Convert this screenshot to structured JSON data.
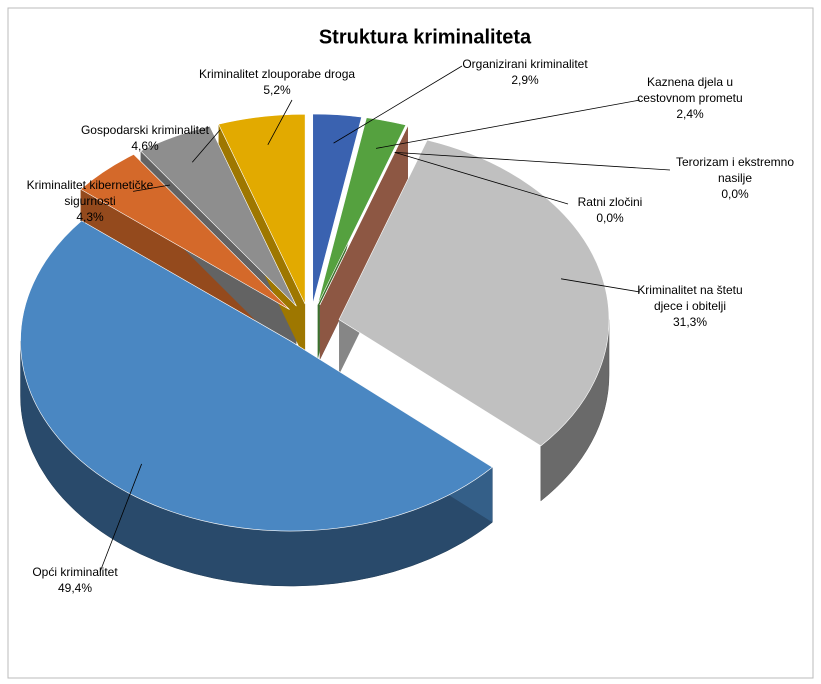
{
  "chart_data": {
    "type": "pie",
    "title": "Struktura kriminaliteta",
    "categories": [
      "Organizirani kriminalitet",
      "Kaznena djela u cestovnom prometu",
      "Terorizam i ekstremno nasilje",
      "Ratni zločini",
      "Kriminalitet na štetu djece i obitelji",
      "Opći kriminalitet",
      "Kriminalitet kibernetičke sigurnosti",
      "Gospodarski kriminalitet",
      "Kriminalitet zlouporabe droga"
    ],
    "values": [
      2.9,
      2.4,
      0.0,
      0.0,
      31.3,
      49.4,
      4.3,
      4.6,
      5.2
    ],
    "value_labels": [
      "2,9%",
      "2,4%",
      "0,0%",
      "0,0%",
      "31,3%",
      "49,4%",
      "4,3%",
      "4,6%",
      "5,2%"
    ],
    "colors": [
      "#3a62b0",
      "#55a13f",
      "#7f9fcf",
      "#c97c5f",
      "#c0c0c0",
      "#4a87c2",
      "#d4692a",
      "#8e8e8e",
      "#e2aa00"
    ]
  }
}
